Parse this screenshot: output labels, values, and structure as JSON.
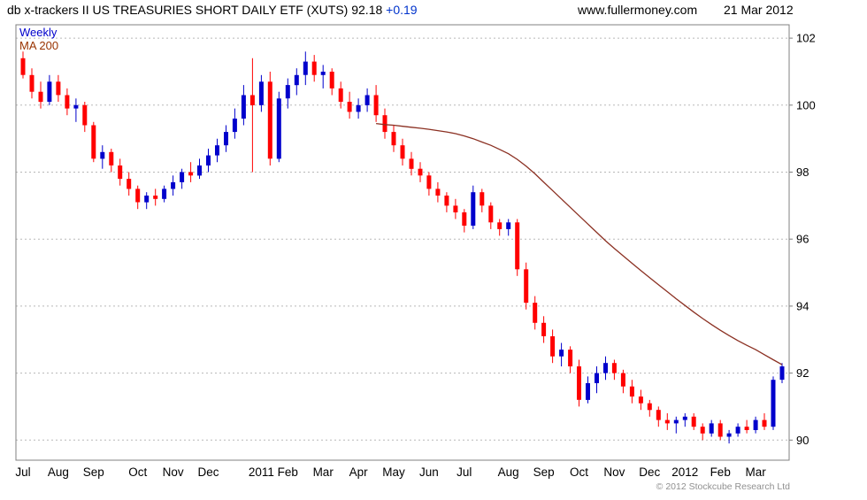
{
  "header": {
    "title": "db x-trackers II US TREASURIES SHORT DAILY ETF (XUTS)",
    "price": "92.18",
    "change": "+0.19",
    "website": "www.fullermoney.com",
    "date": "21 Mar 2012"
  },
  "chart": {
    "timeframe_label": "Weekly",
    "ma_label": "MA 200",
    "copyright": "© 2012 Stockcube Research Ltd",
    "colors": {
      "up": "#0000cc",
      "down": "#ff0000",
      "ma": "#8b3022",
      "grid": "#b8b8b8",
      "border": "#808080",
      "axis_text": "#000000"
    }
  },
  "chart_data": {
    "type": "candlestick",
    "title": "db x-trackers II US TREASURIES SHORT DAILY ETF (XUTS)",
    "timeframe": "Weekly",
    "overlay": "MA 200",
    "legend_position": "top-left",
    "grid": "horizontal-dashed",
    "y_axis_side": "right",
    "y_ticks": [
      90,
      92,
      94,
      96,
      98,
      100,
      102
    ],
    "y_range": [
      89.4,
      102.4
    ],
    "x_labels": [
      {
        "label": "Jul",
        "index": 0
      },
      {
        "label": "Aug",
        "index": 4
      },
      {
        "label": "Sep",
        "index": 8
      },
      {
        "label": "Oct",
        "index": 13
      },
      {
        "label": "Nov",
        "index": 17
      },
      {
        "label": "Dec",
        "index": 21
      },
      {
        "label": "2011",
        "index": 27
      },
      {
        "label": "Feb",
        "index": 30
      },
      {
        "label": "Mar",
        "index": 34
      },
      {
        "label": "Apr",
        "index": 38
      },
      {
        "label": "May",
        "index": 42
      },
      {
        "label": "Jun",
        "index": 46
      },
      {
        "label": "Jul",
        "index": 50
      },
      {
        "label": "Aug",
        "index": 55
      },
      {
        "label": "Sep",
        "index": 59
      },
      {
        "label": "Oct",
        "index": 63
      },
      {
        "label": "Nov",
        "index": 67
      },
      {
        "label": "Dec",
        "index": 71
      },
      {
        "label": "2012",
        "index": 75
      },
      {
        "label": "Feb",
        "index": 79
      },
      {
        "label": "Mar",
        "index": 83
      }
    ],
    "candles": [
      [
        101.4,
        101.6,
        100.8,
        100.9
      ],
      [
        100.9,
        101.1,
        100.2,
        100.4
      ],
      [
        100.4,
        100.7,
        99.9,
        100.1
      ],
      [
        100.1,
        100.9,
        100.0,
        100.7
      ],
      [
        100.7,
        100.9,
        100.1,
        100.3
      ],
      [
        100.3,
        100.5,
        99.7,
        99.9
      ],
      [
        99.9,
        100.2,
        99.5,
        100.0
      ],
      [
        100.0,
        100.1,
        99.2,
        99.4
      ],
      [
        99.4,
        99.5,
        98.3,
        98.4
      ],
      [
        98.4,
        98.8,
        98.1,
        98.6
      ],
      [
        98.6,
        98.7,
        98.0,
        98.2
      ],
      [
        98.2,
        98.4,
        97.6,
        97.8
      ],
      [
        97.8,
        98.0,
        97.3,
        97.5
      ],
      [
        97.5,
        97.6,
        96.9,
        97.1
      ],
      [
        97.1,
        97.4,
        96.9,
        97.3
      ],
      [
        97.3,
        97.5,
        97.0,
        97.2
      ],
      [
        97.2,
        97.6,
        97.1,
        97.5
      ],
      [
        97.5,
        97.9,
        97.3,
        97.7
      ],
      [
        97.7,
        98.1,
        97.5,
        98.0
      ],
      [
        98.0,
        98.3,
        97.7,
        97.9
      ],
      [
        97.9,
        98.4,
        97.8,
        98.2
      ],
      [
        98.2,
        98.7,
        98.0,
        98.5
      ],
      [
        98.5,
        99.0,
        98.3,
        98.8
      ],
      [
        98.8,
        99.4,
        98.6,
        99.2
      ],
      [
        99.2,
        99.9,
        99.0,
        99.6
      ],
      [
        99.6,
        100.6,
        99.4,
        100.3
      ],
      [
        100.3,
        101.4,
        98.0,
        100.0
      ],
      [
        100.0,
        100.9,
        99.8,
        100.7
      ],
      [
        100.7,
        101.0,
        98.2,
        98.4
      ],
      [
        98.4,
        100.4,
        98.3,
        100.2
      ],
      [
        100.2,
        100.8,
        99.9,
        100.6
      ],
      [
        100.6,
        101.1,
        100.3,
        100.9
      ],
      [
        100.9,
        101.6,
        100.6,
        101.3
      ],
      [
        101.3,
        101.5,
        100.7,
        100.9
      ],
      [
        100.9,
        101.2,
        100.5,
        101.0
      ],
      [
        101.0,
        101.1,
        100.3,
        100.5
      ],
      [
        100.5,
        100.7,
        99.9,
        100.1
      ],
      [
        100.1,
        100.4,
        99.6,
        99.8
      ],
      [
        99.8,
        100.2,
        99.6,
        100.0
      ],
      [
        100.0,
        100.5,
        99.8,
        100.3
      ],
      [
        100.3,
        100.6,
        99.5,
        99.7
      ],
      [
        99.7,
        99.9,
        99.0,
        99.2
      ],
      [
        99.2,
        99.4,
        98.6,
        98.8
      ],
      [
        98.8,
        99.0,
        98.2,
        98.4
      ],
      [
        98.4,
        98.6,
        97.9,
        98.1
      ],
      [
        98.1,
        98.3,
        97.7,
        97.9
      ],
      [
        97.9,
        98.0,
        97.3,
        97.5
      ],
      [
        97.5,
        97.7,
        97.1,
        97.3
      ],
      [
        97.3,
        97.4,
        96.8,
        97.0
      ],
      [
        97.0,
        97.2,
        96.6,
        96.8
      ],
      [
        96.8,
        96.9,
        96.2,
        96.4
      ],
      [
        96.4,
        97.6,
        96.3,
        97.4
      ],
      [
        97.4,
        97.5,
        96.8,
        97.0
      ],
      [
        97.0,
        97.1,
        96.3,
        96.5
      ],
      [
        96.5,
        96.6,
        96.1,
        96.3
      ],
      [
        96.3,
        96.6,
        96.1,
        96.5
      ],
      [
        96.5,
        96.6,
        94.9,
        95.1
      ],
      [
        95.1,
        95.3,
        93.9,
        94.1
      ],
      [
        94.1,
        94.3,
        93.3,
        93.5
      ],
      [
        93.5,
        93.7,
        92.9,
        93.1
      ],
      [
        93.1,
        93.3,
        92.3,
        92.5
      ],
      [
        92.5,
        92.9,
        92.2,
        92.7
      ],
      [
        92.7,
        92.8,
        92.0,
        92.2
      ],
      [
        92.2,
        92.4,
        91.0,
        91.2
      ],
      [
        91.2,
        91.9,
        91.1,
        91.7
      ],
      [
        91.7,
        92.2,
        91.4,
        92.0
      ],
      [
        92.0,
        92.5,
        91.8,
        92.3
      ],
      [
        92.3,
        92.4,
        91.8,
        92.0
      ],
      [
        92.0,
        92.1,
        91.4,
        91.6
      ],
      [
        91.6,
        91.8,
        91.1,
        91.3
      ],
      [
        91.3,
        91.5,
        90.9,
        91.1
      ],
      [
        91.1,
        91.2,
        90.7,
        90.9
      ],
      [
        90.9,
        91.0,
        90.4,
        90.6
      ],
      [
        90.6,
        90.8,
        90.3,
        90.5
      ],
      [
        90.5,
        90.7,
        90.2,
        90.6
      ],
      [
        90.6,
        90.8,
        90.4,
        90.7
      ],
      [
        90.7,
        90.8,
        90.3,
        90.4
      ],
      [
        90.4,
        90.5,
        90.0,
        90.2
      ],
      [
        90.2,
        90.6,
        90.1,
        90.5
      ],
      [
        90.5,
        90.6,
        90.0,
        90.1
      ],
      [
        90.1,
        90.3,
        89.9,
        90.2
      ],
      [
        90.2,
        90.5,
        90.1,
        90.4
      ],
      [
        90.4,
        90.6,
        90.2,
        90.3
      ],
      [
        90.3,
        90.7,
        90.2,
        90.6
      ],
      [
        90.6,
        90.8,
        90.3,
        90.4
      ],
      [
        90.4,
        91.9,
        90.3,
        91.8
      ],
      [
        91.8,
        92.3,
        91.7,
        92.2
      ]
    ],
    "ma200": {
      "start_index": 40,
      "values": [
        99.45,
        99.42,
        99.4,
        99.37,
        99.34,
        99.31,
        99.28,
        99.24,
        99.2,
        99.15,
        99.08,
        99.0,
        98.9,
        98.8,
        98.68,
        98.55,
        98.38,
        98.18,
        97.95,
        97.7,
        97.45,
        97.2,
        96.95,
        96.7,
        96.45,
        96.2,
        95.95,
        95.72,
        95.5,
        95.28,
        95.06,
        94.85,
        94.64,
        94.43,
        94.22,
        94.02,
        93.82,
        93.63,
        93.45,
        93.28,
        93.12,
        92.97,
        92.83,
        92.7,
        92.55,
        92.4,
        92.25
      ]
    }
  }
}
